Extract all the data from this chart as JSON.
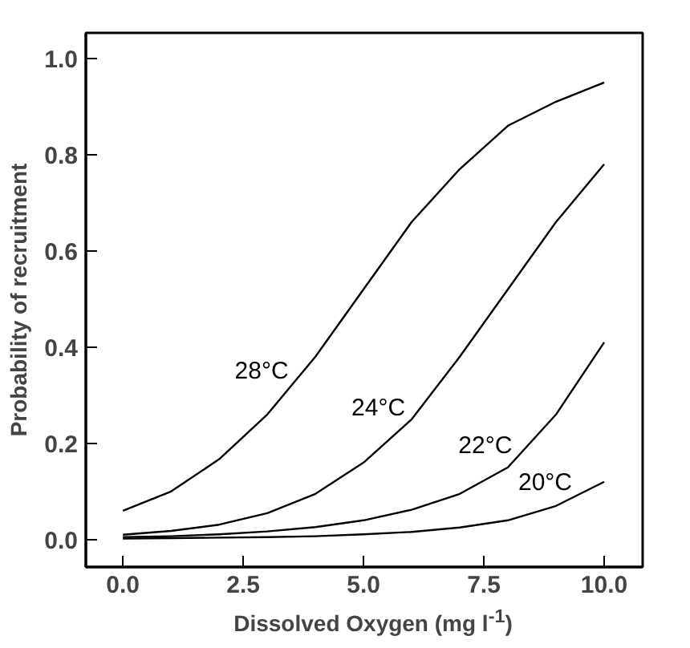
{
  "chart_data": {
    "type": "line",
    "xlabel": "Dissolved Oxygen (mg l$^{-1}$)",
    "ylabel": "Probability of recruitment",
    "x": [
      0,
      1,
      2,
      3,
      4,
      5,
      6,
      7,
      8,
      9,
      10
    ],
    "series": [
      {
        "name": "28°C",
        "color": "#000000",
        "values": [
          0.06,
          0.1,
          0.167,
          0.26,
          0.38,
          0.52,
          0.66,
          0.77,
          0.86,
          0.91,
          0.95
        ]
      },
      {
        "name": "24°C",
        "color": "#000000",
        "values": [
          0.01,
          0.018,
          0.031,
          0.055,
          0.095,
          0.16,
          0.25,
          0.38,
          0.52,
          0.66,
          0.78
        ]
      },
      {
        "name": "22°C",
        "color": "#000000",
        "values": [
          0.005,
          0.007,
          0.011,
          0.017,
          0.026,
          0.04,
          0.062,
          0.095,
          0.15,
          0.26,
          0.41
        ]
      },
      {
        "name": "20°C",
        "color": "#000000",
        "values": [
          0.002,
          0.003,
          0.004,
          0.005,
          0.007,
          0.011,
          0.016,
          0.025,
          0.04,
          0.07,
          0.12
        ]
      }
    ],
    "xlim": [
      -0.77,
      10.8
    ],
    "ylim": [
      -0.057,
      1.053
    ],
    "xticks": [
      {
        "value": 0,
        "label": "0.0"
      },
      2.5,
      {
        "value": 5,
        "label": "5.0"
      },
      7.5,
      {
        "value": 10,
        "label": "10.0"
      }
    ],
    "yticks": [
      {
        "value": 0,
        "label": "0.0"
      },
      0.2,
      0.4,
      0.6,
      0.8,
      {
        "value": 1,
        "label": "1.0"
      }
    ],
    "grid": false,
    "legend": false,
    "marker": "none",
    "line_style": "solid"
  }
}
